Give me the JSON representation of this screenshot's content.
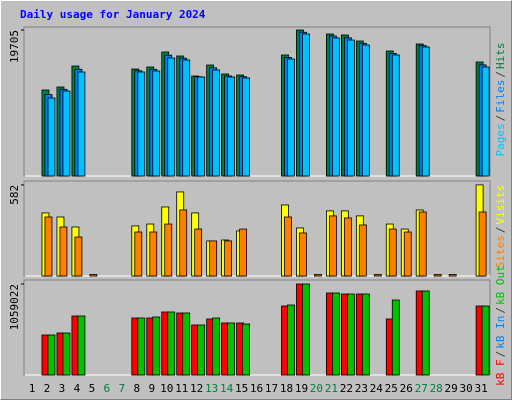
{
  "title": "Daily usage for January 2024",
  "chart_data": [
    {
      "type": "bar",
      "categories": [
        "1",
        "2",
        "3",
        "4",
        "5",
        "6",
        "7",
        "8",
        "9",
        "10",
        "11",
        "12",
        "13",
        "14",
        "15",
        "16",
        "17",
        "18",
        "19",
        "20",
        "21",
        "22",
        "23",
        "24",
        "25",
        "26",
        "27",
        "28",
        "29",
        "30",
        "31"
      ],
      "series": [
        {
          "name": "Hits",
          "color": "#008040",
          "values": [
            0,
            11607,
            12012,
            14846,
            0,
            null,
            null,
            14441,
            14711,
            16736,
            16196,
            13497,
            14981,
            13767,
            13632,
            0,
            0,
            16331,
            19705,
            0,
            19165,
            19030,
            18220,
            0,
            16871,
            0,
            17815,
            0,
            0,
            0,
            15386
          ]
        },
        {
          "name": "Files",
          "color": "#0080ff",
          "values": [
            0,
            11000,
            11700,
            14400,
            0,
            null,
            null,
            14200,
            14400,
            16300,
            15900,
            13400,
            14600,
            13500,
            13400,
            0,
            0,
            16000,
            19400,
            0,
            18900,
            18650,
            17900,
            0,
            16550,
            0,
            17600,
            0,
            0,
            0,
            15000
          ]
        },
        {
          "name": "Pages",
          "color": "#00c0ff",
          "values": [
            0,
            10527,
            11472,
            14036,
            0,
            null,
            null,
            14036,
            14171,
            15926,
            15656,
            13362,
            14306,
            13362,
            13227,
            0,
            0,
            15791,
            19165,
            0,
            18625,
            18355,
            17680,
            0,
            16331,
            0,
            17410,
            0,
            0,
            0,
            14711
          ]
        }
      ],
      "separator": "/",
      "legend_reverse": true,
      "ylim": [
        0,
        20110
      ],
      "yticks": [
        19705
      ]
    },
    {
      "type": "bar",
      "categories": [
        "1",
        "2",
        "3",
        "4",
        "5",
        "6",
        "7",
        "8",
        "9",
        "10",
        "11",
        "12",
        "13",
        "14",
        "15",
        "16",
        "17",
        "18",
        "19",
        "20",
        "21",
        "22",
        "23",
        "24",
        "25",
        "26",
        "27",
        "28",
        "29",
        "30",
        "31"
      ],
      "series": [
        {
          "name": "Visits",
          "color": "#ffff00",
          "values": [
            0,
            403,
            377,
            313,
            0,
            null,
            null,
            320,
            332,
            441,
            537,
            403,
            224,
            230,
            288,
            0,
            0,
            454,
            307,
            0,
            416,
            416,
            384,
            0,
            332,
            300,
            422,
            0,
            0,
            0,
            582
          ]
        },
        {
          "name": "Sites",
          "color": "#ff8000",
          "values": [
            0,
            377,
            313,
            249,
            10,
            null,
            null,
            281,
            281,
            332,
            422,
            300,
            224,
            224,
            300,
            0,
            0,
            377,
            275,
            10,
            384,
            371,
            326,
            10,
            300,
            281,
            409,
            10,
            10,
            0,
            409
          ]
        }
      ],
      "separator": "/",
      "legend_reverse": true,
      "ylim": [
        0,
        607
      ],
      "yticks": [
        582
      ]
    },
    {
      "type": "bar",
      "categories": [
        "1",
        "2",
        "3",
        "4",
        "5",
        "6",
        "7",
        "8",
        "9",
        "10",
        "11",
        "12",
        "13",
        "14",
        "15",
        "16",
        "17",
        "18",
        "19",
        "20",
        "21",
        "22",
        "23",
        "24",
        "25",
        "26",
        "27",
        "28",
        "29",
        "30",
        "31"
      ],
      "category_colors": [
        "#000000",
        "#000000",
        "#000000",
        "#000000",
        "#000000",
        "#008040",
        "#008040",
        "#000000",
        "#000000",
        "#000000",
        "#000000",
        "#000000",
        "#008040",
        "#008040",
        "#000000",
        "#000000",
        "#000000",
        "#000000",
        "#000000",
        "#008040",
        "#008040",
        "#000000",
        "#000000",
        "#000000",
        "#000000",
        "#000000",
        "#008040",
        "#008040",
        "#000000",
        "#000000",
        "#000000"
      ],
      "series": [
        {
          "name": "kB F",
          "color": "#ff0000",
          "values": [
            0,
            465504,
            488780,
            686618,
            0,
            null,
            null,
            663343,
            663343,
            733169,
            721531,
            581880,
            651706,
            605155,
            605155,
            0,
            0,
            802994,
            1059022,
            0,
            954283,
            942646,
            942646,
            0,
            651706,
            0,
            977558,
            0,
            0,
            0,
            802994
          ]
        },
        {
          "name": "kB In",
          "color": "#0080ff",
          "values": [
            null,
            null,
            null,
            null,
            null,
            null,
            null,
            null,
            null,
            null,
            null,
            null,
            null,
            null,
            null,
            null,
            null,
            null,
            null,
            null,
            null,
            null,
            null,
            null,
            null,
            null,
            null,
            null,
            null,
            null,
            null
          ]
        },
        {
          "name": "kB Out",
          "color": "#00c000",
          "values": [
            0,
            465504,
            488780,
            686618,
            0,
            null,
            null,
            663343,
            674980,
            733169,
            721531,
            581880,
            663343,
            605155,
            593518,
            0,
            0,
            814632,
            1059022,
            0,
            954283,
            942646,
            942646,
            0,
            872820,
            0,
            977558,
            0,
            0,
            0,
            802994
          ]
        }
      ],
      "separator": "/",
      "legend_reverse": false,
      "ylim": [
        0,
        1105550
      ],
      "yticks": [
        1059022
      ]
    }
  ]
}
